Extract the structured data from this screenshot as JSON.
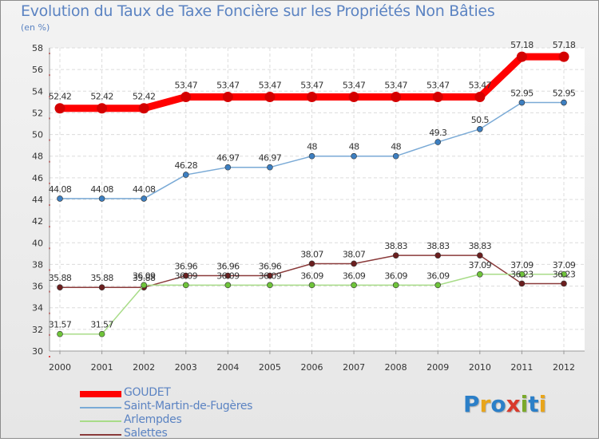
{
  "header": {
    "title": "Evolution du Taux de Taxe Foncière sur les Propriétés Non Bâties",
    "unit": "(en %)"
  },
  "logo": {
    "text": "Proxiti",
    "letters": [
      "P",
      "r",
      "o",
      "x",
      "i",
      "t",
      "i"
    ],
    "colors": [
      "#2b7fc8",
      "#e8a51b",
      "#2b7fc8",
      "#d93a2c",
      "#7aa92a",
      "#2b7fc8",
      "#e8a51b"
    ]
  },
  "chart_data": {
    "type": "line",
    "title": "Evolution du Taux de Taxe Foncière sur les Propriétés Non Bâties",
    "ylabel": "(en %)",
    "xlabel": "",
    "categories": [
      "2000",
      "2001",
      "2002",
      "2003",
      "2004",
      "2005",
      "2006",
      "2007",
      "2008",
      "2009",
      "2010",
      "2011",
      "2012"
    ],
    "ylim": [
      30,
      58
    ],
    "yticks": [
      30,
      32,
      34,
      36,
      38,
      40,
      42,
      44,
      46,
      48,
      50,
      52,
      54,
      56,
      58
    ],
    "grid": true,
    "legend_position": "bottom-left",
    "series": [
      {
        "name": "GOUDET",
        "color": "#ff0000",
        "marker_color": "#d40000",
        "values": [
          52.42,
          52.42,
          52.42,
          53.47,
          53.47,
          53.47,
          53.47,
          53.47,
          53.47,
          53.47,
          53.47,
          57.18,
          57.18
        ],
        "labels": [
          "52.42",
          "52.42",
          "52.42",
          "53.47",
          "53.47",
          "53.47",
          "53.47",
          "53.47",
          "53.47",
          "53.47",
          "53.47",
          "57.18",
          "57.18"
        ],
        "thick": true
      },
      {
        "name": "Saint-Martin-de-Fugères",
        "color": "#7aaad6",
        "marker_color": "#3d7fc1",
        "values": [
          44.08,
          44.08,
          44.08,
          46.28,
          46.97,
          46.97,
          48,
          48,
          48,
          49.3,
          50.5,
          52.95,
          52.95
        ],
        "labels": [
          "44.08",
          "44.08",
          "44.08",
          "46.28",
          "46.97",
          "46.97",
          "48",
          "48",
          "48",
          "49.3",
          "50.5",
          "52.95",
          "52.95"
        ],
        "thick": false
      },
      {
        "name": "Arlempdes",
        "color": "#a8dc88",
        "marker_color": "#6fc43a",
        "values": [
          31.57,
          31.57,
          36.09,
          36.09,
          36.09,
          36.09,
          36.09,
          36.09,
          36.09,
          36.09,
          37.09,
          37.09,
          37.09
        ],
        "labels": [
          "31.57",
          "31.57",
          "36.09",
          "36.09",
          "36.09",
          "36.09",
          "36.09",
          "36.09",
          "36.09",
          "36.09",
          "37.09",
          "37.09",
          "37.09"
        ],
        "thick": false
      },
      {
        "name": "Salettes",
        "color": "#8a3a3a",
        "marker_color": "#6b1f1f",
        "values": [
          35.88,
          35.88,
          35.88,
          36.96,
          36.96,
          36.96,
          38.07,
          38.07,
          38.83,
          38.83,
          38.83,
          36.23,
          36.23
        ],
        "labels": [
          "35.88",
          "35.88",
          "35.88",
          "36.96",
          "36.96",
          "36.96",
          "38.07",
          "38.07",
          "38.83",
          "38.83",
          "38.83",
          "36.23",
          "36.23"
        ],
        "thick": false
      }
    ]
  }
}
